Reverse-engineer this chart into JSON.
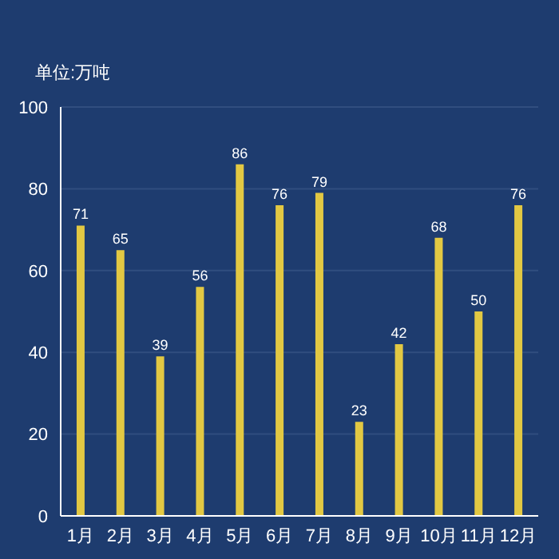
{
  "chart_data": {
    "type": "bar",
    "ylabel": "单位:万吨",
    "categories": [
      "1月",
      "2月",
      "3月",
      "4月",
      "5月",
      "6月",
      "7月",
      "8月",
      "9月",
      "10月",
      "11月",
      "12月"
    ],
    "values": [
      71,
      65,
      39,
      56,
      86,
      76,
      79,
      23,
      42,
      68,
      50,
      76
    ],
    "color": "#e2c843",
    "ylim": [
      0,
      100
    ],
    "yticks": [
      0,
      20,
      40,
      60,
      80,
      100
    ],
    "grid": "y",
    "data_labels": true
  }
}
